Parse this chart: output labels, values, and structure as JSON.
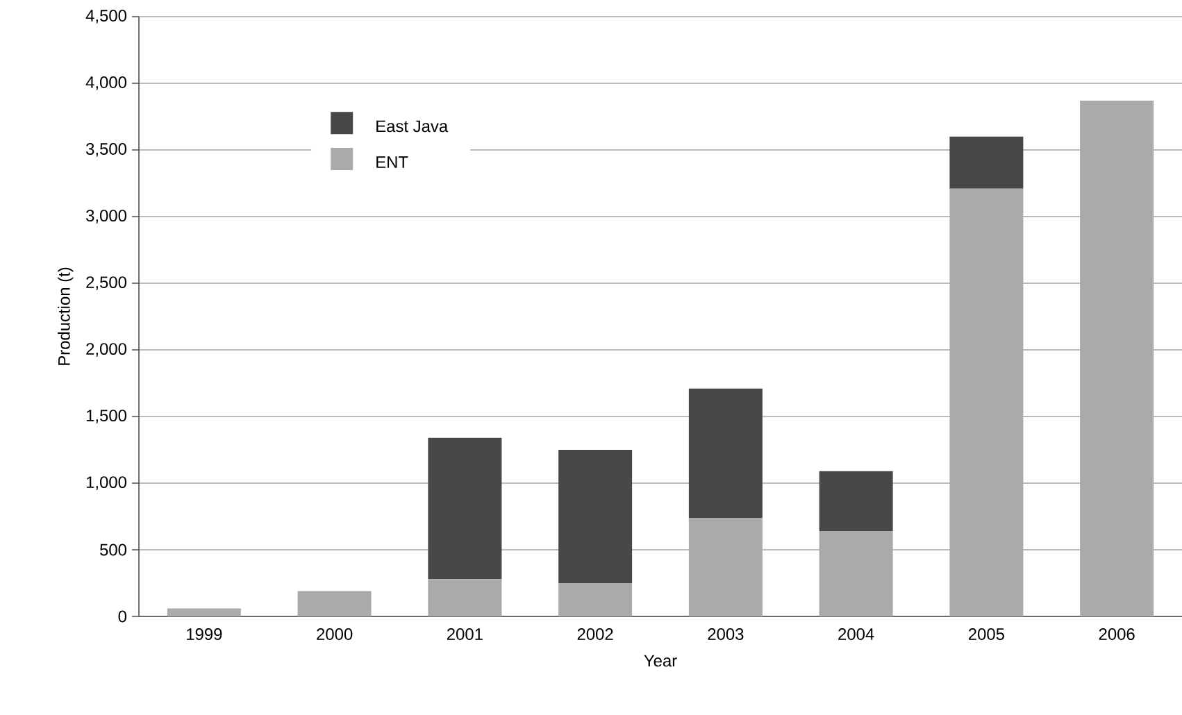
{
  "chart_data": {
    "type": "bar",
    "stacked": true,
    "xlabel": "Year",
    "ylabel": "Production (t)",
    "categories": [
      "1999",
      "2000",
      "2001",
      "2002",
      "2003",
      "2004",
      "2005",
      "2006"
    ],
    "series": [
      {
        "name": "ENT",
        "color": "#aaaaaa",
        "values": [
          60,
          190,
          280,
          250,
          740,
          640,
          3210,
          3870
        ]
      },
      {
        "name": "East Java",
        "color": "#484848",
        "values": [
          0,
          0,
          1060,
          1000,
          970,
          450,
          390,
          0
        ]
      }
    ],
    "ylim": [
      0,
      4500
    ],
    "yticks": [
      {
        "value": 0,
        "label": "0"
      },
      {
        "value": 500,
        "label": "500"
      },
      {
        "value": 1000,
        "label": "1,000"
      },
      {
        "value": 1500,
        "label": "1,500"
      },
      {
        "value": 2000,
        "label": "2,000"
      },
      {
        "value": 2500,
        "label": "2,500"
      },
      {
        "value": 3000,
        "label": "3,000"
      },
      {
        "value": 3500,
        "label": "3,500"
      },
      {
        "value": 4000,
        "label": "4,000"
      },
      {
        "value": 4500,
        "label": "4,500"
      }
    ],
    "grid": "y",
    "legend": "top left"
  }
}
